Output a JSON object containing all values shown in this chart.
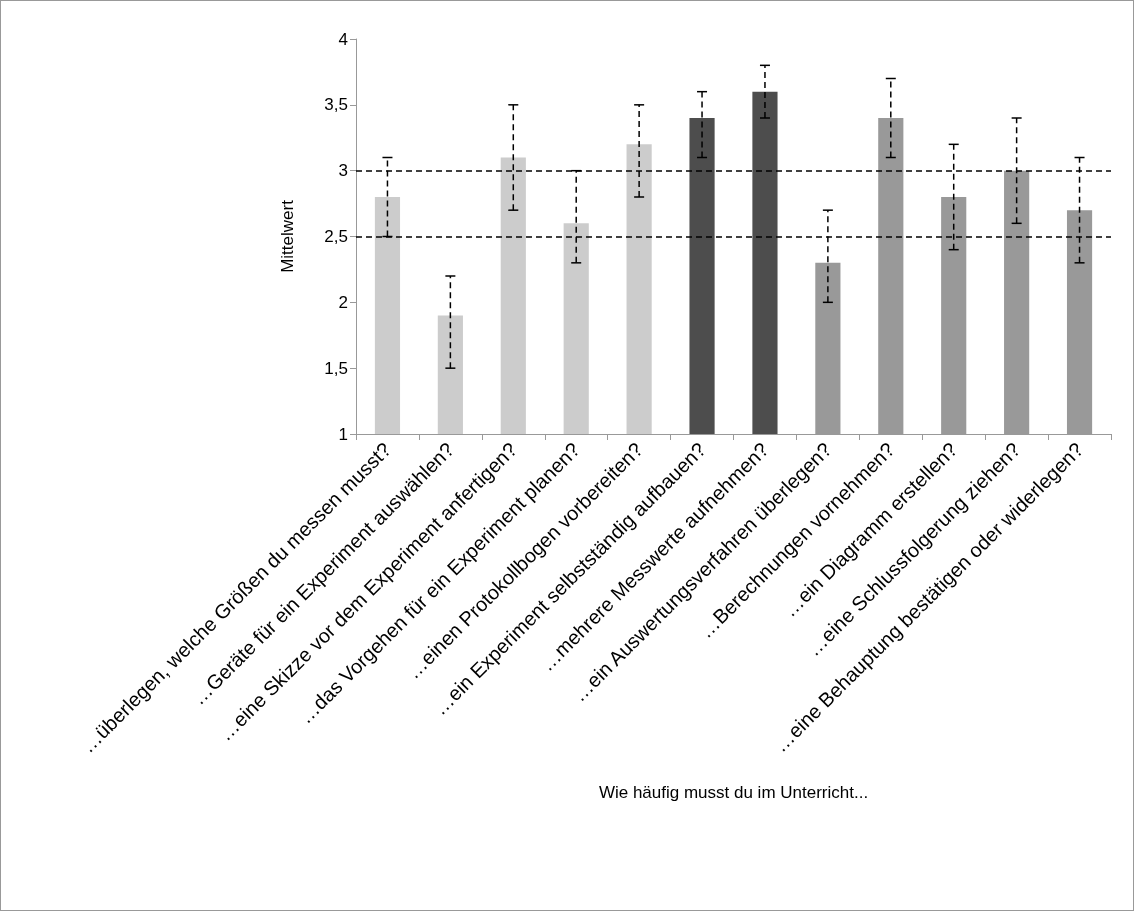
{
  "chart_data": {
    "type": "bar",
    "xlabel": "Wie häufig musst du im Unterricht...",
    "ylabel": "Mittelwert",
    "categories": [
      "…überlegen, welche Größen du messen musst?",
      "…Geräte für ein Experiment auswählen?",
      "…eine Skizze vor dem Experiment anfertigen?",
      "…das Vorgehen für ein Experiment planen?",
      "…einen Protokollbogen vorbereiten?",
      "…ein Experiment selbstständig aufbauen?",
      "…mehrere Messwerte aufnehmen?",
      "…ein Auswertungsverfahren überlegen?",
      "…Berechnungen vornehmen?",
      "…ein Diagramm erstellen?",
      "…eine Schlussfolgerung ziehen?",
      "…eine Behauptung bestätigen oder widerlegen?"
    ],
    "values": [
      2.8,
      1.9,
      3.1,
      2.6,
      3.2,
      3.4,
      3.6,
      2.3,
      3.4,
      2.8,
      3.0,
      2.7
    ],
    "colors": [
      "#cccccc",
      "#cccccc",
      "#cccccc",
      "#cccccc",
      "#cccccc",
      "#4d4d4d",
      "#4d4d4d",
      "#999999",
      "#999999",
      "#999999",
      "#999999",
      "#999999"
    ],
    "errors": [
      [
        2.5,
        3.1
      ],
      [
        1.5,
        2.2
      ],
      [
        2.7,
        3.5
      ],
      [
        2.3,
        3.0
      ],
      [
        2.8,
        3.5
      ],
      [
        3.1,
        3.6
      ],
      [
        3.4,
        3.8
      ],
      [
        2.0,
        2.7
      ],
      [
        3.1,
        3.7
      ],
      [
        2.4,
        3.2
      ],
      [
        2.6,
        3.4
      ],
      [
        2.3,
        3.1
      ]
    ],
    "ylim": [
      1,
      4
    ],
    "yticks": [
      1,
      {
        "value": 1.5,
        "label": "1,5"
      },
      2,
      {
        "value": 2.5,
        "label": "2,5"
      },
      3,
      {
        "value": 3.5,
        "label": "3,5"
      },
      4
    ],
    "ref_lines": [
      {
        "axis": "y",
        "value": 3,
        "color": "#000000",
        "line_style": "dashed"
      },
      {
        "axis": "y",
        "value": 2.5,
        "color": "#000000",
        "line_style": "dashed"
      }
    ],
    "grid": false
  }
}
